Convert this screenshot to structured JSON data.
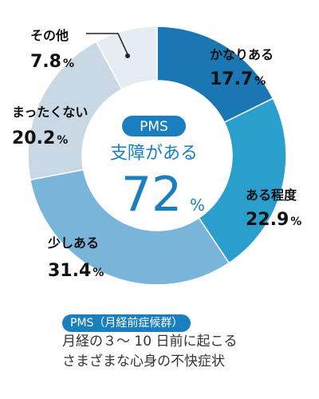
{
  "chart_data": {
    "type": "pie",
    "style": "donut",
    "categories": [
      "かなりある",
      "ある程度",
      "少しある",
      "まったくない",
      "その他"
    ],
    "values": [
      17.7,
      22.9,
      31.4,
      20.2,
      7.8
    ],
    "value_labels": [
      "17.7",
      "22.9",
      "31.4",
      "20.2",
      "7.8"
    ],
    "unit": "%",
    "colors": [
      "#1a77b4",
      "#2a9fcd",
      "#79b4d9",
      "#c8d8e4",
      "#e6edf2"
    ]
  },
  "center": {
    "badge": "PMS",
    "subtitle": "支障がある",
    "value": "72",
    "unit": "%"
  },
  "footnote": {
    "badge": "PMS（月経前症候群）",
    "line1": "月経の３～ 10 日前に起こる",
    "line2": "さまざまな心身の不快症状"
  }
}
